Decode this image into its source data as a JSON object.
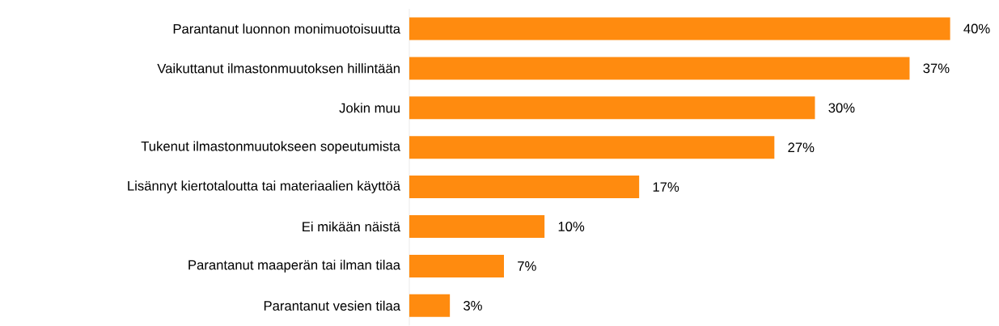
{
  "chart_data": {
    "type": "bar",
    "orientation": "horizontal",
    "categories": [
      "Parantanut luonnon monimuotoisuutta",
      "Vaikuttanut ilmastonmuutoksen hillintään",
      "Jokin muu",
      "Tukenut ilmastonmuutokseen sopeutumista",
      "Lisännyt kiertotaloutta tai materiaalien käyttöä",
      "Ei mikään näistä",
      "Parantanut maaperän tai ilman tilaa",
      "Parantanut vesien tilaa"
    ],
    "values": [
      40,
      37,
      30,
      27,
      17,
      10,
      7,
      3
    ],
    "value_labels": [
      "40%",
      "37%",
      "30%",
      "27%",
      "17%",
      "10%",
      "7%",
      "3%"
    ],
    "color": "#ff8b0f",
    "tick_labels": "y"
  }
}
